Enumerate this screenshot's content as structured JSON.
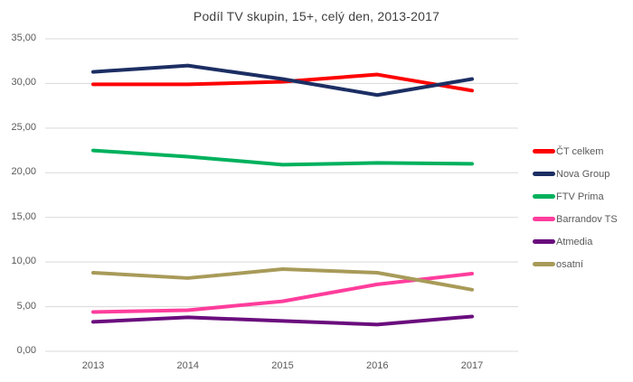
{
  "chart_data": {
    "type": "line",
    "title": "Podíl TV skupin, 15+, celý den, 2013-2017",
    "categories": [
      "2013",
      "2014",
      "2015",
      "2016",
      "2017"
    ],
    "series": [
      {
        "name": "ČT celkem",
        "color": "#fe0000",
        "values": [
          29.9,
          29.9,
          30.2,
          31.0,
          29.2
        ]
      },
      {
        "name": "Nova Group",
        "color": "#1c2e63",
        "values": [
          31.3,
          32.0,
          30.5,
          28.7,
          30.5
        ]
      },
      {
        "name": "FTV Prima",
        "color": "#00b15d",
        "values": [
          22.5,
          21.8,
          20.9,
          21.1,
          21.0
        ]
      },
      {
        "name": "Barrandov TS",
        "color": "#ff3d9c",
        "values": [
          4.4,
          4.6,
          5.6,
          7.5,
          8.7
        ]
      },
      {
        "name": "Atmedia",
        "color": "#6a0d7d",
        "values": [
          3.3,
          3.8,
          3.4,
          3.0,
          3.9
        ]
      },
      {
        "name": "osatní",
        "color": "#a89b59",
        "values": [
          8.8,
          8.2,
          9.2,
          8.8,
          6.9
        ]
      }
    ],
    "yticks": [
      {
        "v": 35,
        "label": "35,00"
      },
      {
        "v": 30,
        "label": "30,00"
      },
      {
        "v": 25,
        "label": "25,00"
      },
      {
        "v": 20,
        "label": "20,00"
      },
      {
        "v": 15,
        "label": "15,00"
      },
      {
        "v": 10,
        "label": "10,00"
      },
      {
        "v": 5,
        "label": "5,00"
      },
      {
        "v": 0,
        "label": "0,00"
      }
    ],
    "ylim": [
      0,
      35
    ],
    "grid": true,
    "legend_position": "right"
  },
  "colors": {
    "grid": "#d9d9d9",
    "axis_text": "#595959",
    "title_text": "#3f3f3f",
    "background": "#ffffff"
  }
}
